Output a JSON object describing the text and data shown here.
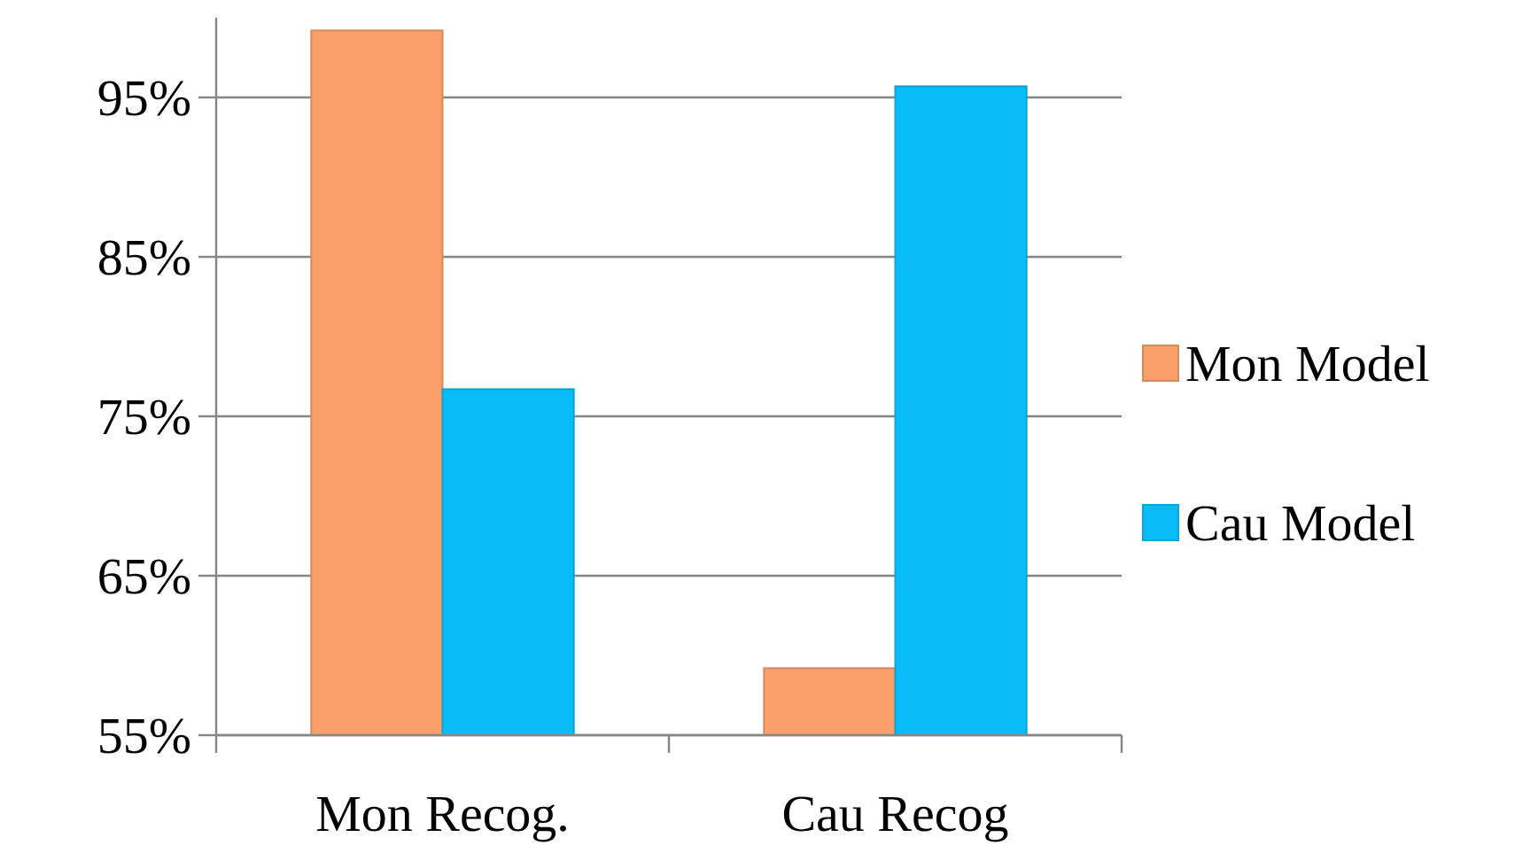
{
  "chart_data": {
    "type": "bar",
    "categories": [
      "Mon Recog.",
      "Cau Recog"
    ],
    "series": [
      {
        "name": "Mon Model",
        "color": "#fa9f6a",
        "values": [
          99.2,
          59.2
        ]
      },
      {
        "name": "Cau Model",
        "color": "#08bdf7",
        "values": [
          76.7,
          95.7
        ]
      }
    ],
    "ylim": [
      55,
      100
    ],
    "yticks": [
      {
        "value": 55,
        "label": "55%"
      },
      {
        "value": 65,
        "label": "65%"
      },
      {
        "value": 75,
        "label": "75%"
      },
      {
        "value": 85,
        "label": "85%"
      },
      {
        "value": 95,
        "label": "95%"
      }
    ],
    "grid": "y",
    "legend": "right"
  }
}
